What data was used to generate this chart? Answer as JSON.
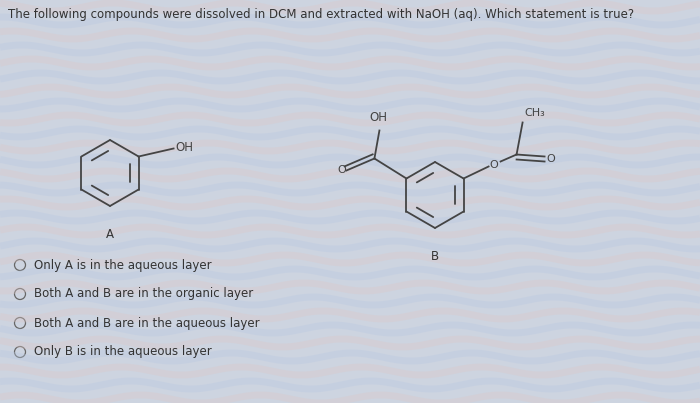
{
  "title": "The following compounds were dissolved in DCM and extracted with NaOH (aq). Which statement is true?",
  "title_fontsize": 8.5,
  "bg_color": "#cdd4e0",
  "text_color": "#333333",
  "structure_color": "#444444",
  "label_A": "A",
  "label_B": "B",
  "options": [
    "Only A is in the aqueous layer",
    "Both A and B are in the organic layer",
    "Both A and B are in the aqueous layer",
    "Only B is in the aqueous layer"
  ],
  "options_fontsize": 8.5,
  "lw": 1.3
}
